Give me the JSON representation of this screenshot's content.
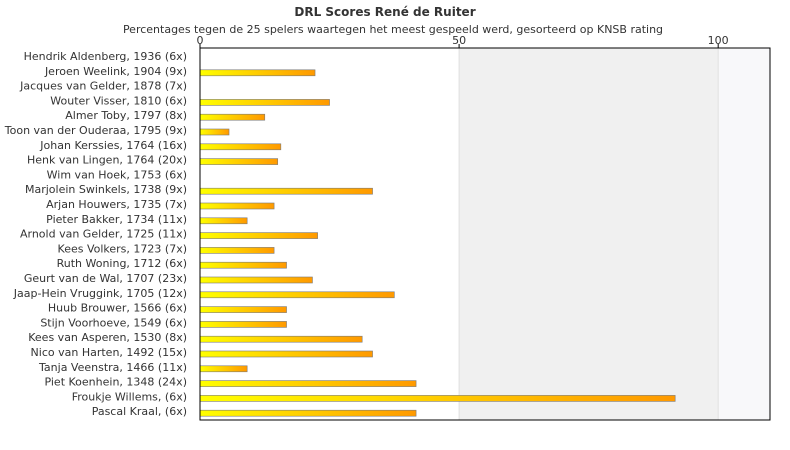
{
  "chart_data": {
    "type": "bar",
    "orientation": "horizontal",
    "title": "DRL Scores René de Ruiter",
    "subtitle": "Percentages tegen de 25 spelers waartegen het meest gespeeld werd, gesorteerd op KNSB rating",
    "categories": [
      "Hendrik Aldenberg, 1936 (6x)",
      "Jeroen Weelink, 1904 (9x)",
      "Jacques van Gelder, 1878 (7x)",
      "Wouter Visser, 1810 (6x)",
      "Almer Toby, 1797 (8x)",
      "Toon van der Ouderaa, 1795 (9x)",
      "Johan Kerssies, 1764 (16x)",
      "Henk van Lingen, 1764 (20x)",
      "Wim van Hoek, 1753 (6x)",
      "Marjolein Swinkels, 1738 (9x)",
      "Arjan Houwers, 1735 (7x)",
      "Pieter Bakker, 1734 (11x)",
      "Arnold van Gelder, 1725 (11x)",
      "Kees Volkers, 1723 (7x)",
      "Ruth Woning, 1712 (6x)",
      "Geurt van de Wal, 1707 (23x)",
      "Jaap-Hein Vruggink, 1705 (12x)",
      "Huub Brouwer, 1566 (6x)",
      "Stijn Voorhoeve, 1549 (6x)",
      "Kees van Asperen, 1530 (8x)",
      "Nico van Harten, 1492 (15x)",
      "Tanja Veenstra, 1466 (11x)",
      "Piet Koenhein, 1348 (24x)",
      "Froukje Willems,  (6x)",
      "Pascal Kraal,  (6x)"
    ],
    "values": [
      0,
      22.2,
      0,
      25,
      12.5,
      5.6,
      15.6,
      15,
      0,
      33.3,
      14.3,
      9.1,
      22.7,
      14.3,
      16.7,
      21.7,
      37.5,
      16.7,
      16.7,
      31.3,
      33.3,
      9.1,
      41.7,
      91.7,
      41.7
    ],
    "xlim": [
      0,
      110
    ],
    "xticks": [
      0,
      50,
      100
    ],
    "xtick_labels": [
      "0",
      "50",
      "100"
    ],
    "bar_colors": {
      "start": "#ffff00",
      "end": "#ff9900",
      "stroke": "#7a7a7a"
    },
    "band_colors": [
      "#ffffff",
      "#f0f0f0",
      "#f8f8fa"
    ]
  }
}
